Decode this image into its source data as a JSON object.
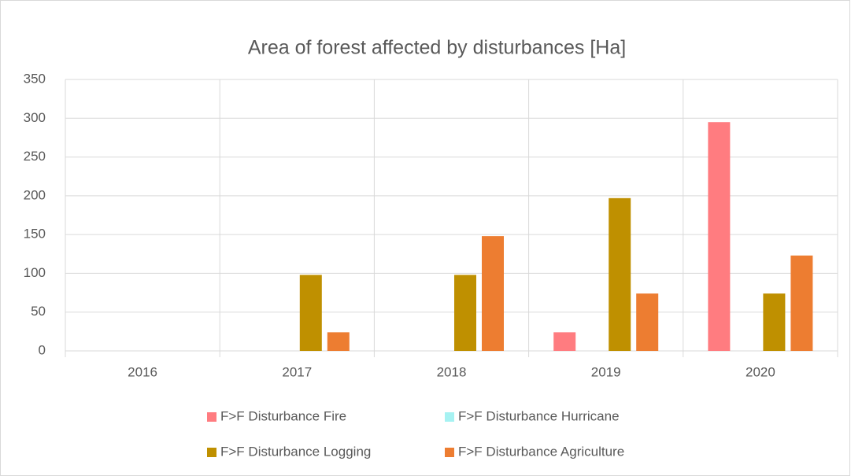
{
  "chart_data": {
    "type": "bar",
    "title": "Area of forest affected by disturbances [Ha]",
    "categories": [
      "2016",
      "2017",
      "2018",
      "2019",
      "2020"
    ],
    "series": [
      {
        "name": "F>F Disturbance Fire",
        "color": "#ff7c80",
        "values": [
          0,
          0,
          0,
          24,
          295
        ]
      },
      {
        "name": "F>F Disturbance Hurricane",
        "color": "#a6f2f2",
        "values": [
          0,
          0,
          0,
          0,
          0
        ]
      },
      {
        "name": "F>F Disturbance Logging",
        "color": "#bf9000",
        "values": [
          0,
          98,
          98,
          197,
          74
        ]
      },
      {
        "name": "F>F Disturbance Agriculture",
        "color": "#ed7d31",
        "values": [
          0,
          24,
          148,
          74,
          123
        ]
      }
    ],
    "ylim": [
      0,
      350
    ],
    "yticks": [
      0,
      50,
      100,
      150,
      200,
      250,
      300,
      350
    ],
    "grid": true,
    "legend": "bottom"
  }
}
